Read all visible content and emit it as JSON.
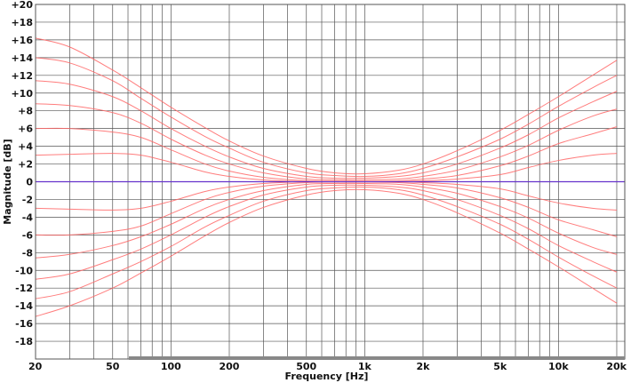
{
  "chart_data": {
    "type": "line",
    "xlabel": "Frequency [Hz]",
    "ylabel": "Magnitude [dB]",
    "x_scale": "log",
    "xlim": [
      20,
      22000
    ],
    "ylim": [
      -20,
      20
    ],
    "grid": true,
    "legend": "none",
    "x_ticks": [
      {
        "value": 20,
        "label": "20"
      },
      {
        "value": 50,
        "label": "50"
      },
      {
        "value": 100,
        "label": "100"
      },
      {
        "value": 200,
        "label": "200"
      },
      {
        "value": 500,
        "label": "500"
      },
      {
        "value": 1000,
        "label": "1k"
      },
      {
        "value": 2000,
        "label": "2k"
      },
      {
        "value": 5000,
        "label": "5k"
      },
      {
        "value": 10000,
        "label": "10k"
      },
      {
        "value": 20000,
        "label": "20k"
      }
    ],
    "y_ticks": [
      {
        "value": 20,
        "label": "+20"
      },
      {
        "value": 18,
        "label": "+18"
      },
      {
        "value": 16,
        "label": "+16"
      },
      {
        "value": 14,
        "label": "+14"
      },
      {
        "value": 12,
        "label": "+12"
      },
      {
        "value": 10,
        "label": "+10"
      },
      {
        "value": 8,
        "label": "+8"
      },
      {
        "value": 6,
        "label": "+6"
      },
      {
        "value": 4,
        "label": "+4"
      },
      {
        "value": 2,
        "label": "+2"
      },
      {
        "value": 0,
        "label": "0"
      },
      {
        "value": -2,
        "label": "-2"
      },
      {
        "value": -4,
        "label": "-4"
      },
      {
        "value": -6,
        "label": "-6"
      },
      {
        "value": -8,
        "label": "-8"
      },
      {
        "value": -10,
        "label": "-10"
      },
      {
        "value": -12,
        "label": "-12"
      },
      {
        "value": -14,
        "label": "-14"
      },
      {
        "value": -16,
        "label": "-16"
      },
      {
        "value": -18,
        "label": "-18"
      }
    ],
    "x": [
      20,
      30,
      50,
      70,
      100,
      150,
      200,
      300,
      500,
      700,
      1000,
      1500,
      2000,
      3000,
      5000,
      7000,
      10000,
      15000,
      20000
    ],
    "series": [
      {
        "values": [
          16.2,
          15.2,
          12.6,
          10.6,
          8.4,
          6.1,
          4.6,
          2.9,
          1.5,
          1.0,
          0.9,
          1.3,
          2.0,
          3.5,
          5.8,
          7.6,
          9.6,
          12.0,
          13.7
        ]
      },
      {
        "values": [
          14.0,
          13.4,
          11.4,
          9.4,
          7.3,
          5.1,
          3.8,
          2.2,
          1.0,
          0.7,
          0.6,
          0.9,
          1.5,
          2.8,
          4.8,
          6.5,
          8.5,
          10.6,
          12.0
        ]
      },
      {
        "values": [
          11.4,
          11.0,
          9.6,
          8.0,
          6.0,
          4.0,
          2.8,
          1.5,
          0.6,
          0.4,
          0.4,
          0.6,
          1.0,
          2.0,
          3.8,
          5.3,
          7.2,
          9.0,
          10.2
        ]
      },
      {
        "values": [
          8.8,
          8.6,
          7.8,
          6.6,
          4.8,
          3.0,
          2.0,
          1.0,
          0.3,
          0.2,
          0.2,
          0.3,
          0.6,
          1.3,
          2.8,
          4.1,
          5.8,
          7.4,
          8.2
        ]
      },
      {
        "values": [
          6.0,
          6.0,
          5.6,
          5.0,
          3.6,
          2.0,
          1.2,
          0.5,
          0.1,
          0.05,
          0.05,
          0.1,
          0.3,
          0.7,
          1.8,
          2.9,
          4.3,
          5.4,
          6.2
        ]
      },
      {
        "values": [
          3.0,
          3.1,
          3.2,
          3.0,
          2.2,
          1.1,
          0.6,
          0.2,
          0.0,
          0.0,
          0.0,
          0.0,
          0.1,
          0.3,
          0.8,
          1.6,
          2.4,
          3.0,
          3.2
        ]
      },
      {
        "values": [
          0,
          0,
          0,
          0,
          0,
          0,
          0,
          0,
          0,
          0,
          0,
          0,
          0,
          0,
          0,
          0,
          0,
          0,
          0
        ]
      },
      {
        "values": [
          -3.0,
          -3.1,
          -3.2,
          -3.0,
          -2.2,
          -1.1,
          -0.6,
          -0.2,
          0.0,
          0.0,
          0.0,
          0.0,
          -0.1,
          -0.3,
          -0.8,
          -1.6,
          -2.4,
          -3.0,
          -3.2
        ]
      },
      {
        "values": [
          -6.0,
          -6.0,
          -5.6,
          -5.0,
          -3.6,
          -2.0,
          -1.2,
          -0.5,
          -0.1,
          -0.05,
          -0.05,
          -0.1,
          -0.3,
          -0.7,
          -1.8,
          -2.9,
          -4.3,
          -5.4,
          -6.2
        ]
      },
      {
        "values": [
          -8.6,
          -8.2,
          -7.2,
          -6.2,
          -4.8,
          -3.0,
          -2.0,
          -1.0,
          -0.3,
          -0.2,
          -0.2,
          -0.3,
          -0.6,
          -1.3,
          -2.8,
          -4.1,
          -5.8,
          -7.4,
          -8.2
        ]
      },
      {
        "values": [
          -11.0,
          -10.4,
          -8.8,
          -7.6,
          -6.0,
          -4.0,
          -2.8,
          -1.5,
          -0.6,
          -0.4,
          -0.4,
          -0.6,
          -1.0,
          -2.0,
          -3.8,
          -5.3,
          -7.2,
          -9.0,
          -10.2
        ]
      },
      {
        "values": [
          -13.2,
          -12.4,
          -10.4,
          -9.0,
          -7.3,
          -5.1,
          -3.8,
          -2.2,
          -1.0,
          -0.7,
          -0.6,
          -0.9,
          -1.5,
          -2.8,
          -4.8,
          -6.5,
          -8.5,
          -10.6,
          -12.0
        ]
      },
      {
        "values": [
          -15.2,
          -14.0,
          -12.0,
          -10.3,
          -8.4,
          -6.1,
          -4.6,
          -2.9,
          -1.5,
          -1.0,
          -0.9,
          -1.3,
          -2.0,
          -3.5,
          -5.8,
          -7.6,
          -9.6,
          -12.0,
          -13.7
        ]
      }
    ],
    "colors": {
      "grid": "#555555",
      "curve": "#ff6666",
      "unity_line": "#6633cc",
      "scrollbar": "#888888"
    }
  }
}
